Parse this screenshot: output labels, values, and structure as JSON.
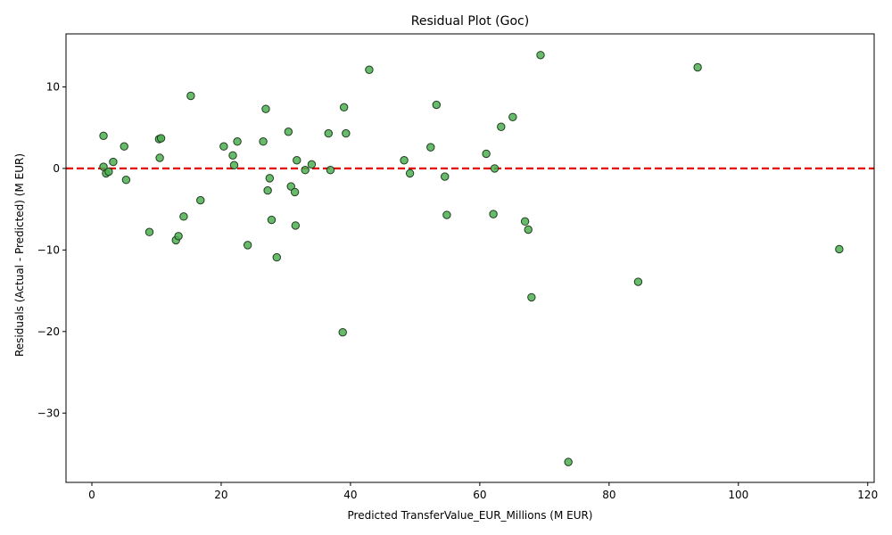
{
  "chart_data": {
    "type": "scatter",
    "title": "Residual Plot (Goc)",
    "xlabel": "Predicted TransferValue_EUR_Millions (M EUR)",
    "ylabel": "Residuals (Actual - Predicted) (M EUR)",
    "xlim": [
      -4,
      121
    ],
    "ylim": [
      -38.5,
      16.5
    ],
    "xticks": [
      0,
      20,
      40,
      60,
      80,
      100,
      120
    ],
    "yticks": [
      -30,
      -20,
      -10,
      0,
      10
    ],
    "xtick_labels": [
      "0",
      "20",
      "40",
      "60",
      "80",
      "100",
      "120"
    ],
    "ytick_labels": [
      "−30",
      "−20",
      "−10",
      "0",
      "10"
    ],
    "grid": false,
    "reference_line": {
      "y": 0,
      "color": "#e00000",
      "style": "dashed"
    },
    "marker_color": "#4caf50",
    "marker_edge_color": "#1f3d1f",
    "line_color": "#e00000",
    "points": [
      {
        "x": 1.8,
        "y": 4.0
      },
      {
        "x": 1.8,
        "y": 0.2
      },
      {
        "x": 2.2,
        "y": -0.6
      },
      {
        "x": 2.6,
        "y": -0.4
      },
      {
        "x": 3.3,
        "y": 0.8
      },
      {
        "x": 5.0,
        "y": 2.7
      },
      {
        "x": 5.3,
        "y": -1.4
      },
      {
        "x": 8.9,
        "y": -7.8
      },
      {
        "x": 10.4,
        "y": 3.6
      },
      {
        "x": 10.7,
        "y": 3.7
      },
      {
        "x": 10.5,
        "y": 1.3
      },
      {
        "x": 13.0,
        "y": -8.8
      },
      {
        "x": 13.4,
        "y": -8.3
      },
      {
        "x": 14.2,
        "y": -5.9
      },
      {
        "x": 15.3,
        "y": 8.9
      },
      {
        "x": 16.8,
        "y": -3.9
      },
      {
        "x": 20.4,
        "y": 2.7
      },
      {
        "x": 21.8,
        "y": 1.6
      },
      {
        "x": 22.0,
        "y": 0.4
      },
      {
        "x": 22.5,
        "y": 3.3
      },
      {
        "x": 24.1,
        "y": -9.4
      },
      {
        "x": 26.5,
        "y": 3.3
      },
      {
        "x": 26.9,
        "y": 7.3
      },
      {
        "x": 27.2,
        "y": -2.7
      },
      {
        "x": 27.5,
        "y": -1.2
      },
      {
        "x": 27.8,
        "y": -6.3
      },
      {
        "x": 28.6,
        "y": -10.9
      },
      {
        "x": 30.4,
        "y": 4.5
      },
      {
        "x": 30.8,
        "y": -2.2
      },
      {
        "x": 31.4,
        "y": -2.9
      },
      {
        "x": 31.5,
        "y": -7.0
      },
      {
        "x": 31.7,
        "y": 1.0
      },
      {
        "x": 33.0,
        "y": -0.2
      },
      {
        "x": 34.0,
        "y": 0.5
      },
      {
        "x": 36.6,
        "y": 4.3
      },
      {
        "x": 36.9,
        "y": -0.2
      },
      {
        "x": 38.8,
        "y": -20.1
      },
      {
        "x": 39.0,
        "y": 7.5
      },
      {
        "x": 39.3,
        "y": 4.3
      },
      {
        "x": 42.9,
        "y": 12.1
      },
      {
        "x": 48.3,
        "y": 1.0
      },
      {
        "x": 49.2,
        "y": -0.6
      },
      {
        "x": 52.4,
        "y": 2.6
      },
      {
        "x": 53.3,
        "y": 7.8
      },
      {
        "x": 54.6,
        "y": -1.0
      },
      {
        "x": 54.9,
        "y": -5.7
      },
      {
        "x": 61.0,
        "y": 1.8
      },
      {
        "x": 62.1,
        "y": -5.6
      },
      {
        "x": 62.3,
        "y": 0.0
      },
      {
        "x": 63.3,
        "y": 5.1
      },
      {
        "x": 65.1,
        "y": 6.3
      },
      {
        "x": 67.0,
        "y": -6.5
      },
      {
        "x": 67.5,
        "y": -7.5
      },
      {
        "x": 68.0,
        "y": -15.8
      },
      {
        "x": 69.4,
        "y": 13.9
      },
      {
        "x": 73.7,
        "y": -36.0
      },
      {
        "x": 84.5,
        "y": -13.9
      },
      {
        "x": 93.7,
        "y": 12.4
      },
      {
        "x": 115.6,
        "y": -9.9
      }
    ]
  }
}
